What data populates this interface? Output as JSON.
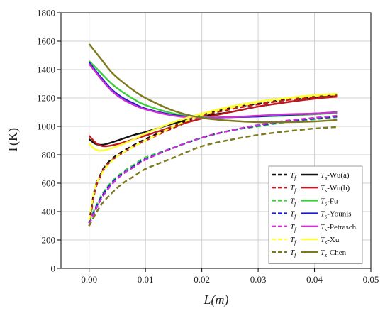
{
  "chart_data": {
    "type": "line",
    "xlabel": "L(m)",
    "ylabel": "T(K)",
    "xlim": [
      -0.005,
      0.05
    ],
    "ylim": [
      0,
      1800
    ],
    "xticks": [
      0.0,
      0.01,
      0.02,
      0.03,
      0.04,
      0.05
    ],
    "xtick_labels": [
      "0.00",
      "0.01",
      "0.02",
      "0.03",
      "0.04",
      "0.05"
    ],
    "yticks": [
      0,
      200,
      400,
      600,
      800,
      1000,
      1200,
      1400,
      1600,
      1800
    ],
    "ytick_labels": [
      "0",
      "200",
      "400",
      "600",
      "800",
      "1000",
      "1200",
      "1400",
      "1600",
      "1800"
    ],
    "grid": true,
    "legend_position": "bottom-right",
    "series": [
      {
        "name": "Wu(a)",
        "color": "#111111",
        "fluid_label": "T",
        "fluid_sub": "f",
        "solid_label": "T",
        "solid_sub": "s",
        "solid_suffix": "-Wu(a)",
        "x": [
          0.0,
          0.001,
          0.002,
          0.003,
          0.005,
          0.008,
          0.01,
          0.015,
          0.02,
          0.025,
          0.03,
          0.035,
          0.04,
          0.044
        ],
        "Tf": [
          320,
          560,
          660,
          730,
          800,
          870,
          910,
          1000,
          1080,
          1130,
          1160,
          1190,
          1210,
          1220
        ],
        "Ts": [
          910,
          880,
          870,
          875,
          900,
          940,
          960,
          1020,
          1070,
          1100,
          1140,
          1170,
          1200,
          1215
        ]
      },
      {
        "name": "Wu(b)",
        "color": "#c0181e",
        "fluid_label": "T",
        "fluid_sub": "f",
        "solid_label": "T",
        "solid_sub": "s",
        "solid_suffix": "-Wu(b)",
        "x": [
          0.0,
          0.001,
          0.002,
          0.003,
          0.005,
          0.008,
          0.01,
          0.015,
          0.02,
          0.025,
          0.03,
          0.035,
          0.04,
          0.044
        ],
        "Tf": [
          300,
          540,
          650,
          720,
          790,
          860,
          900,
          990,
          1070,
          1120,
          1155,
          1185,
          1205,
          1215
        ],
        "Ts": [
          935,
          890,
          865,
          860,
          875,
          910,
          935,
          1000,
          1055,
          1100,
          1140,
          1170,
          1195,
          1210
        ]
      },
      {
        "name": "Fu",
        "color": "#3ccf3c",
        "fluid_label": "T",
        "fluid_sub": "f",
        "solid_label": "T",
        "solid_sub": "s",
        "solid_suffix": "-Fu",
        "x": [
          0.0,
          0.002,
          0.004,
          0.006,
          0.008,
          0.01,
          0.015,
          0.02,
          0.025,
          0.03,
          0.035,
          0.04,
          0.044
        ],
        "Tf": [
          330,
          500,
          610,
          680,
          730,
          780,
          850,
          920,
          970,
          1000,
          1030,
          1050,
          1065
        ],
        "Ts": [
          1460,
          1380,
          1300,
          1240,
          1190,
          1150,
          1090,
          1065,
          1065,
          1070,
          1075,
          1085,
          1095
        ]
      },
      {
        "name": "Younis",
        "color": "#1a1ad6",
        "fluid_label": "T",
        "fluid_sub": "f",
        "solid_label": "T",
        "solid_sub": "s",
        "solid_suffix": "-Younis",
        "x": [
          0.0,
          0.002,
          0.004,
          0.006,
          0.008,
          0.01,
          0.015,
          0.02,
          0.025,
          0.03,
          0.035,
          0.04,
          0.044
        ],
        "Tf": [
          320,
          490,
          600,
          670,
          720,
          770,
          850,
          920,
          970,
          1005,
          1035,
          1055,
          1070
        ],
        "Ts": [
          1450,
          1350,
          1260,
          1200,
          1160,
          1125,
          1080,
          1060,
          1065,
          1070,
          1080,
          1090,
          1100
        ]
      },
      {
        "name": "Petrasch",
        "color": "#cc33cc",
        "fluid_label": "T",
        "fluid_sub": "f",
        "solid_label": "T",
        "solid_sub": "s",
        "solid_suffix": "-Petrasch",
        "x": [
          0.0,
          0.002,
          0.004,
          0.006,
          0.008,
          0.01,
          0.015,
          0.02,
          0.025,
          0.03,
          0.035,
          0.04,
          0.044
        ],
        "Tf": [
          310,
          480,
          590,
          665,
          715,
          765,
          850,
          920,
          970,
          1010,
          1040,
          1060,
          1075
        ],
        "Ts": [
          1440,
          1340,
          1250,
          1190,
          1150,
          1120,
          1075,
          1060,
          1065,
          1075,
          1085,
          1090,
          1100
        ]
      },
      {
        "name": "Xu",
        "color": "#ffff33",
        "fluid_label": "T",
        "fluid_sub": "f",
        "solid_label": "T",
        "solid_sub": "s",
        "solid_suffix": "-Xu",
        "x": [
          0.0,
          0.001,
          0.002,
          0.003,
          0.005,
          0.008,
          0.01,
          0.015,
          0.02,
          0.025,
          0.03,
          0.035,
          0.04,
          0.044
        ],
        "Tf": [
          340,
          560,
          650,
          710,
          790,
          860,
          900,
          1000,
          1080,
          1130,
          1170,
          1195,
          1215,
          1225
        ],
        "Ts": [
          880,
          840,
          830,
          835,
          860,
          910,
          950,
          1030,
          1090,
          1140,
          1175,
          1200,
          1220,
          1230
        ]
      },
      {
        "name": "Chen",
        "color": "#7c7a1c",
        "fluid_label": "T",
        "fluid_sub": "f",
        "solid_label": "T",
        "solid_sub": "s",
        "solid_suffix": "-Chen",
        "x": [
          0.0,
          0.002,
          0.004,
          0.006,
          0.008,
          0.01,
          0.015,
          0.02,
          0.025,
          0.03,
          0.035,
          0.04,
          0.044
        ],
        "Tf": [
          300,
          440,
          530,
          600,
          650,
          700,
          780,
          860,
          905,
          940,
          965,
          985,
          995
        ],
        "Ts": [
          1580,
          1480,
          1380,
          1310,
          1250,
          1200,
          1110,
          1060,
          1040,
          1030,
          1030,
          1035,
          1045
        ]
      }
    ]
  }
}
